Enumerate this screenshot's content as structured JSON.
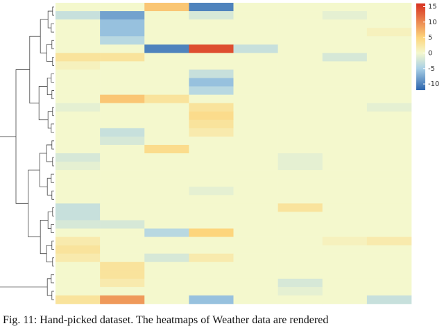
{
  "chart_data": {
    "type": "heatmap",
    "caption": "Fig. 11: Hand-picked dataset. The heatmaps of Weather data are rendered",
    "values": [
      [
        0,
        0,
        6,
        -10,
        0,
        0,
        0,
        0
      ],
      [
        -3,
        -8,
        0,
        -2,
        0,
        0,
        -1,
        0
      ],
      [
        0,
        -6,
        0,
        0,
        0,
        0,
        0,
        0
      ],
      [
        0,
        -6,
        0,
        0,
        0,
        0,
        0,
        1
      ],
      [
        0,
        -4,
        0,
        0,
        0,
        0,
        0,
        0
      ],
      [
        0,
        0,
        -10,
        14,
        -3,
        0,
        0,
        0
      ],
      [
        3,
        3,
        0,
        0,
        0,
        0,
        -2,
        0
      ],
      [
        1,
        0,
        0,
        0,
        0,
        0,
        0,
        0
      ],
      [
        0,
        0,
        0,
        -3,
        0,
        0,
        0,
        0
      ],
      [
        0,
        0,
        0,
        -6,
        0,
        0,
        0,
        0
      ],
      [
        0,
        0,
        0,
        -4,
        0,
        0,
        0,
        0
      ],
      [
        0,
        6,
        3,
        0,
        0,
        0,
        0,
        0
      ],
      [
        -1,
        0,
        0,
        3,
        0,
        0,
        0,
        -1
      ],
      [
        0,
        0,
        0,
        4,
        0,
        0,
        0,
        0
      ],
      [
        0,
        0,
        0,
        3,
        0,
        0,
        0,
        0
      ],
      [
        0,
        -3,
        0,
        2,
        0,
        0,
        0,
        0
      ],
      [
        0,
        -2,
        0,
        0,
        0,
        0,
        0,
        0
      ],
      [
        0,
        0,
        4,
        0,
        0,
        0,
        0,
        0
      ],
      [
        -2,
        0,
        0,
        0,
        0,
        -1,
        0,
        0
      ],
      [
        -1,
        0,
        0,
        0,
        0,
        -1,
        0,
        0
      ],
      [
        0,
        0,
        0,
        0,
        0,
        0,
        0,
        0
      ],
      [
        0,
        0,
        0,
        0,
        0,
        0,
        0,
        0
      ],
      [
        0,
        0,
        0,
        -1,
        0,
        0,
        0,
        0
      ],
      [
        0,
        0,
        0,
        0,
        0,
        0,
        0,
        0
      ],
      [
        -3,
        0,
        0,
        0,
        0,
        3,
        0,
        0
      ],
      [
        -3,
        0,
        0,
        0,
        0,
        0,
        0,
        0
      ],
      [
        -2,
        -2,
        0,
        0,
        0,
        0,
        0,
        0
      ],
      [
        0,
        0,
        -4,
        5,
        0,
        0,
        0,
        0
      ],
      [
        2,
        0,
        0,
        0,
        0,
        0,
        1,
        2
      ],
      [
        3,
        0,
        0,
        0,
        0,
        0,
        0,
        0
      ],
      [
        2,
        0,
        -2,
        2,
        0,
        0,
        0,
        0
      ],
      [
        0,
        3,
        0,
        0,
        0,
        0,
        0,
        0
      ],
      [
        0,
        3,
        0,
        0,
        0,
        0,
        0,
        0
      ],
      [
        0,
        2,
        0,
        0,
        0,
        -2,
        0,
        0
      ],
      [
        0,
        0,
        0,
        0,
        0,
        -1,
        0,
        0
      ],
      [
        3,
        9,
        0,
        -6,
        0,
        0,
        0,
        -3
      ]
    ],
    "zlim": [
      -12,
      16
    ],
    "zticks": [
      15,
      10,
      5,
      0,
      -5,
      -10
    ],
    "color_stops": [
      -12,
      -5,
      0,
      5,
      16
    ],
    "colors": [
      "#2b64ad",
      "#a9d0e6",
      "#f4f8cd",
      "#fdd57c",
      "#d7301f"
    ]
  }
}
